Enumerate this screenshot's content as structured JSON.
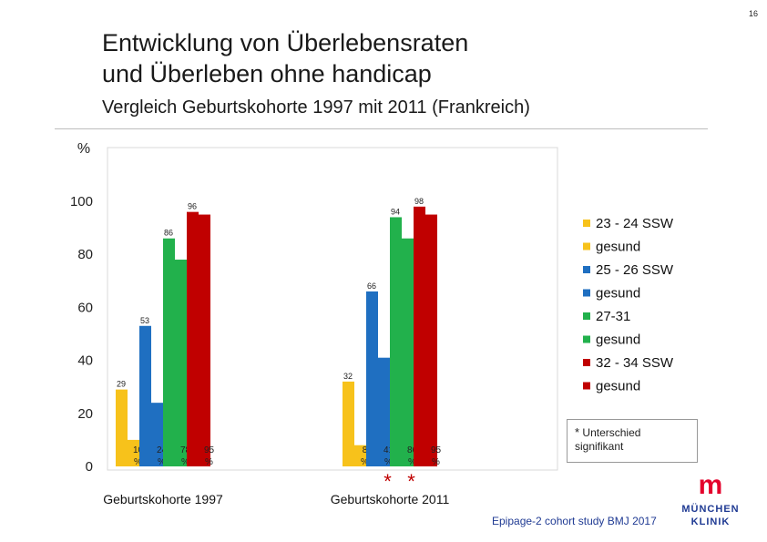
{
  "page_number": "16",
  "title_line1": "Entwicklung von Überlebensraten",
  "title_line2": "und Überleben ohne handicap",
  "subtitle": "Vergleich Geburtskohorte 1997 mit 2011 (Frankreich)",
  "note": {
    "star": "*",
    "text_line1": "Unterschied",
    "text_line2": "signifikant"
  },
  "footnote": "Epipage-2 cohort study BMJ 2017",
  "logo": {
    "mark": "m",
    "line1": "MÜNCHEN",
    "line2": "KLINIK"
  },
  "chart_data": {
    "type": "bar",
    "ylabel": "%",
    "ylim": [
      0,
      100
    ],
    "yticks": [
      0,
      20,
      40,
      60,
      80,
      100
    ],
    "categories": [
      "Geburtskohorte 1997",
      "Geburtskohorte 2011"
    ],
    "series": [
      {
        "name": "23 - 24 SSW",
        "color": "#f7c21b",
        "values": [
          29,
          32
        ],
        "labels": [
          "29",
          "32"
        ]
      },
      {
        "name": "gesund",
        "color": "#f7c21b",
        "values": [
          10,
          8
        ],
        "labels": [
          "10\n%",
          "8\n%"
        ]
      },
      {
        "name": "25 - 26 SSW",
        "color": "#1f6fc1",
        "values": [
          53,
          66
        ],
        "labels": [
          "53",
          "66"
        ]
      },
      {
        "name": "gesund",
        "color": "#1f6fc1",
        "values": [
          24,
          41
        ],
        "labels": [
          "24\n%",
          "41\n%"
        ]
      },
      {
        "name": "27-31",
        "color": "#22b14c",
        "values": [
          86,
          94
        ],
        "labels": [
          "86",
          "94"
        ]
      },
      {
        "name": "gesund",
        "color": "#22b14c",
        "values": [
          78,
          86
        ],
        "labels": [
          "78\n%",
          "86\n%"
        ]
      },
      {
        "name": "32 - 34 SSW",
        "color": "#c00000",
        "values": [
          96,
          98
        ],
        "labels": [
          "96",
          "98"
        ]
      },
      {
        "name": "gesund",
        "color": "#c00000",
        "values": [
          95,
          95
        ],
        "labels": [
          "95\n%",
          "95\n%"
        ]
      }
    ],
    "significant": [
      {
        "category": "Geburtskohorte 2011",
        "series_index": 3,
        "marker": "*"
      },
      {
        "category": "Geburtskohorte 2011",
        "series_index": 5,
        "marker": "*"
      }
    ],
    "legend_position": "right",
    "grid": false
  }
}
